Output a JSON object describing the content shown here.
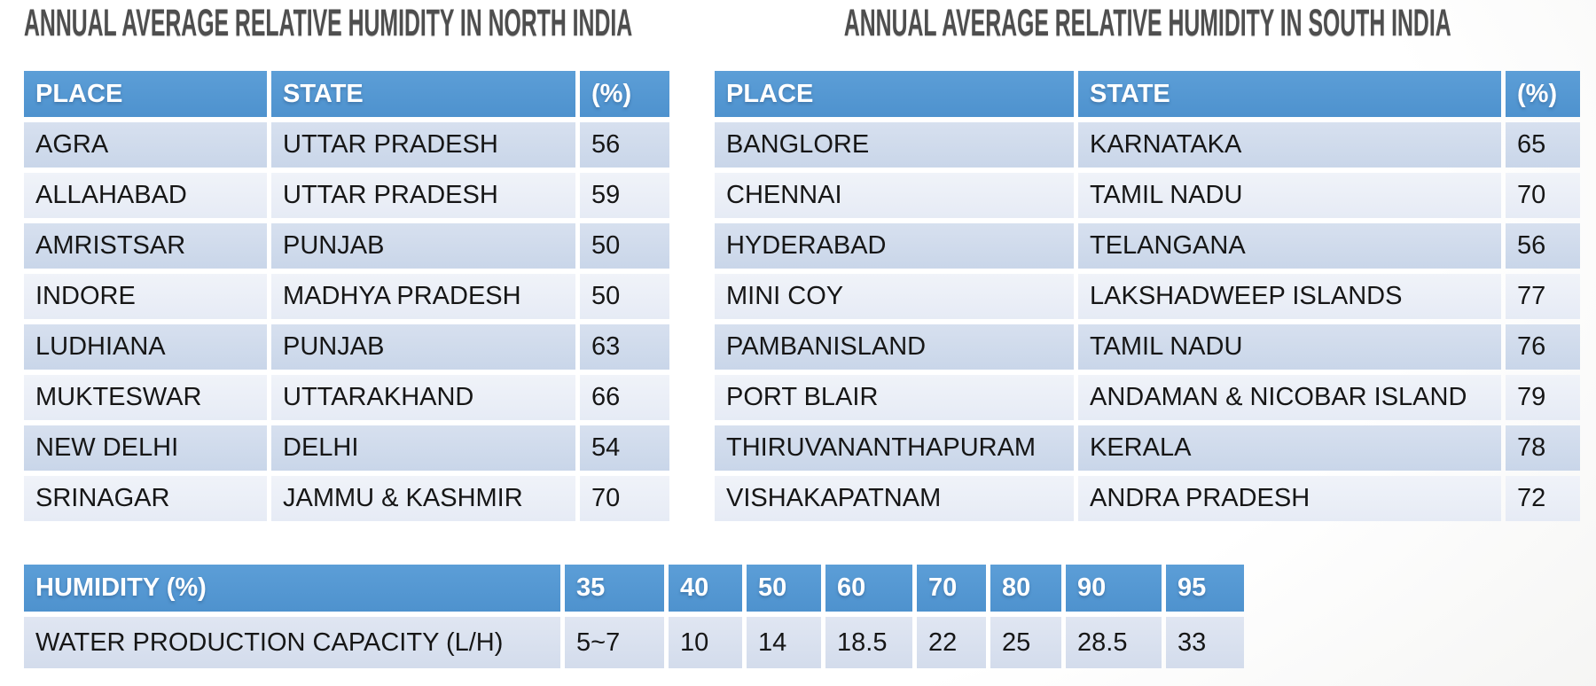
{
  "colors": {
    "header_blue": "#5295D0",
    "row_dark": "#CBD7EA",
    "row_light": "#E9EEF7",
    "capacity_row": "#D7E0EF",
    "title_text": "#4E4E4E",
    "header_text": "#FFFFFF",
    "body_text": "#161616"
  },
  "north_table": {
    "title": "ANNUAL AVERAGE RELATIVE HUMIDITY IN NORTH INDIA",
    "headers": {
      "place": "PLACE",
      "state": "STATE",
      "percent": "(%)"
    },
    "rows": [
      {
        "place": "AGRA",
        "state": "UTTAR PRADESH",
        "value": "56"
      },
      {
        "place": "ALLAHABAD",
        "state": "UTTAR PRADESH",
        "value": "59"
      },
      {
        "place": "AMRISTSAR",
        "state": "PUNJAB",
        "value": "50"
      },
      {
        "place": "INDORE",
        "state": "MADHYA PRADESH",
        "value": "50"
      },
      {
        "place": "LUDHIANA",
        "state": "PUNJAB",
        "value": "63"
      },
      {
        "place": "MUKTESWAR",
        "state": "UTTARAKHAND",
        "value": "66"
      },
      {
        "place": "NEW DELHI",
        "state": "DELHI",
        "value": "54"
      },
      {
        "place": "SRINAGAR",
        "state": "JAMMU & KASHMIR",
        "value": "70"
      }
    ]
  },
  "south_table": {
    "title": "ANNUAL AVERAGE RELATIVE HUMIDITY IN SOUTH INDIA",
    "headers": {
      "place": "PLACE",
      "state": "STATE",
      "percent": "(%)"
    },
    "rows": [
      {
        "place": "BANGLORE",
        "state": "KARNATAKA",
        "value": "65"
      },
      {
        "place": "CHENNAI",
        "state": "TAMIL NADU",
        "value": "70"
      },
      {
        "place": "HYDERABAD",
        "state": "TELANGANA",
        "value": "56"
      },
      {
        "place": "MINI COY",
        "state": "LAKSHADWEEP ISLANDS",
        "value": "77"
      },
      {
        "place": "PAMBANISLAND",
        "state": "TAMIL NADU",
        "value": "76"
      },
      {
        "place": "PORT BLAIR",
        "state": "ANDAMAN & NICOBAR ISLAND",
        "value": "79"
      },
      {
        "place": "THIRUVANANTHAPURAM",
        "state": "KERALA",
        "value": "78"
      },
      {
        "place": "VISHAKAPATNAM",
        "state": "ANDRA PRADESH",
        "value": "72"
      }
    ]
  },
  "capacity_table": {
    "humidity_label": "HUMIDITY (%)",
    "humidity_values": [
      "35",
      "40",
      "50",
      "60",
      "70",
      "80",
      "90",
      "95"
    ],
    "capacity_label": "WATER PRODUCTION CAPACITY (L/H)",
    "capacity_values": [
      "5~7",
      "10",
      "14",
      "18.5",
      "22",
      "25",
      "28.5",
      "33"
    ]
  }
}
